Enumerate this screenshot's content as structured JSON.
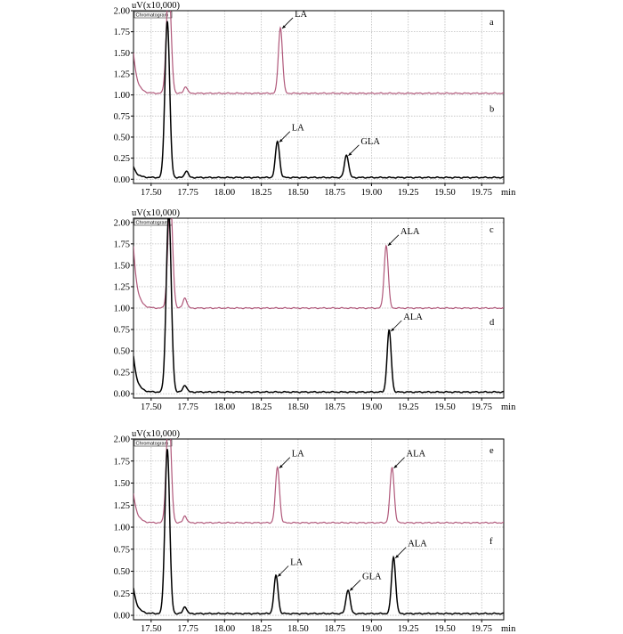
{
  "colors": {
    "upper_trace": "#b0587a",
    "lower_trace": "#000000",
    "grid": "#bdbdbd",
    "axis": "#000000"
  },
  "chart_data": [
    {
      "type": "line",
      "panel": "top",
      "ylabel": "uV(x10,000)",
      "corner_label": "Chromatogram",
      "xunit": "min",
      "xlim": [
        17.38,
        19.9
      ],
      "ylim": [
        -0.05,
        2.0
      ],
      "xticks": [
        "17.50",
        "17.75",
        "18.00",
        "18.25",
        "18.50",
        "18.75",
        "19.00",
        "19.25",
        "19.50",
        "19.75"
      ],
      "xtick_values": [
        17.5,
        17.75,
        18.0,
        18.25,
        18.5,
        18.75,
        19.0,
        19.25,
        19.5,
        19.75
      ],
      "yticks": [
        "0.00",
        "0.25",
        "0.50",
        "0.75",
        "1.00",
        "1.25",
        "1.50",
        "1.75",
        "2.00"
      ],
      "ytick_values": [
        0,
        0.25,
        0.5,
        0.75,
        1.0,
        1.25,
        1.5,
        1.75,
        2.0
      ],
      "series": [
        {
          "tag": "a",
          "style": "upper",
          "baseline": 1.02,
          "start": 1.5,
          "peaks": [
            {
              "t": 17.62,
              "h": 1.3,
              "w": 0.016
            },
            {
              "t": 17.735,
              "h": 0.08,
              "w": 0.012
            },
            {
              "t": 18.38,
              "h": 0.78,
              "w": 0.014
            }
          ],
          "labels": [
            {
              "text": "LA",
              "peak_t": 18.38,
              "peak_y": 1.8
            }
          ]
        },
        {
          "tag": "b",
          "style": "lower",
          "baseline": 0.02,
          "start": 0.15,
          "peaks": [
            {
              "t": 17.61,
              "h": 1.86,
              "w": 0.016
            },
            {
              "t": 17.74,
              "h": 0.08,
              "w": 0.012
            },
            {
              "t": 18.36,
              "h": 0.43,
              "w": 0.014
            },
            {
              "t": 18.83,
              "h": 0.27,
              "w": 0.014
            }
          ],
          "labels": [
            {
              "text": "LA",
              "peak_t": 18.36,
              "peak_y": 0.45
            },
            {
              "text": "GLA",
              "peak_t": 18.83,
              "peak_y": 0.29
            }
          ]
        }
      ]
    },
    {
      "type": "line",
      "panel": "middle",
      "ylabel": "uV(x10,000)",
      "corner_label": "Chromatogram",
      "xunit": "min",
      "xlim": [
        17.38,
        19.9
      ],
      "ylim": [
        -0.05,
        2.05
      ],
      "xticks": [
        "17.50",
        "17.75",
        "18.00",
        "18.25",
        "18.50",
        "18.75",
        "19.00",
        "19.25",
        "19.50",
        "19.75"
      ],
      "xtick_values": [
        17.5,
        17.75,
        18.0,
        18.25,
        18.5,
        18.75,
        19.0,
        19.25,
        19.5,
        19.75
      ],
      "yticks": [
        "0.00",
        "0.25",
        "0.50",
        "0.75",
        "1.00",
        "1.25",
        "1.50",
        "1.75",
        "2.00"
      ],
      "ytick_values": [
        0,
        0.25,
        0.5,
        0.75,
        1.0,
        1.25,
        1.5,
        1.75,
        2.0
      ],
      "series": [
        {
          "tag": "c",
          "style": "upper",
          "baseline": 1.0,
          "start": 1.72,
          "peaks": [
            {
              "t": 17.63,
              "h": 1.3,
              "w": 0.016
            },
            {
              "t": 17.73,
              "h": 0.12,
              "w": 0.013
            },
            {
              "t": 19.1,
              "h": 0.73,
              "w": 0.014
            }
          ],
          "labels": [
            {
              "text": "ALA",
              "peak_t": 19.1,
              "peak_y": 1.74
            }
          ]
        },
        {
          "tag": "d",
          "style": "lower",
          "baseline": 0.02,
          "start": 0.44,
          "peaks": [
            {
              "t": 17.62,
              "h": 2.1,
              "w": 0.017
            },
            {
              "t": 17.73,
              "h": 0.08,
              "w": 0.013
            },
            {
              "t": 19.12,
              "h": 0.72,
              "w": 0.014
            }
          ],
          "labels": [
            {
              "text": "ALA",
              "peak_t": 19.12,
              "peak_y": 0.74
            }
          ]
        }
      ]
    },
    {
      "type": "line",
      "panel": "bottom",
      "ylabel": "uV(x10,000)",
      "corner_label": "Chromatogram",
      "xunit": "min",
      "xlim": [
        17.38,
        19.9
      ],
      "ylim": [
        -0.05,
        2.0
      ],
      "xticks": [
        "17.50",
        "17.75",
        "18.00",
        "18.25",
        "18.50",
        "18.75",
        "19.00",
        "19.25",
        "19.50",
        "19.75"
      ],
      "xtick_values": [
        17.5,
        17.75,
        18.0,
        18.25,
        18.5,
        18.75,
        19.0,
        19.25,
        19.5,
        19.75
      ],
      "yticks": [
        "0.00",
        "0.25",
        "0.50",
        "0.75",
        "1.00",
        "1.25",
        "1.50",
        "1.75",
        "2.00"
      ],
      "ytick_values": [
        0,
        0.25,
        0.5,
        0.75,
        1.0,
        1.25,
        1.5,
        1.75,
        2.0
      ],
      "series": [
        {
          "tag": "e",
          "style": "upper",
          "baseline": 1.05,
          "start": 1.38,
          "peaks": [
            {
              "t": 17.62,
              "h": 1.3,
              "w": 0.016
            },
            {
              "t": 17.73,
              "h": 0.08,
              "w": 0.012
            },
            {
              "t": 18.36,
              "h": 0.63,
              "w": 0.014
            },
            {
              "t": 19.14,
              "h": 0.63,
              "w": 0.014
            }
          ],
          "labels": [
            {
              "text": "LA",
              "peak_t": 18.36,
              "peak_y": 1.68
            },
            {
              "text": "ALA",
              "peak_t": 19.14,
              "peak_y": 1.68
            }
          ]
        },
        {
          "tag": "f",
          "style": "lower",
          "baseline": 0.02,
          "start": 0.31,
          "peaks": [
            {
              "t": 17.61,
              "h": 1.87,
              "w": 0.016
            },
            {
              "t": 17.73,
              "h": 0.08,
              "w": 0.012
            },
            {
              "t": 18.35,
              "h": 0.43,
              "w": 0.014
            },
            {
              "t": 18.84,
              "h": 0.27,
              "w": 0.014
            },
            {
              "t": 19.15,
              "h": 0.64,
              "w": 0.014
            }
          ],
          "labels": [
            {
              "text": "LA",
              "peak_t": 18.35,
              "peak_y": 0.45
            },
            {
              "text": "GLA",
              "peak_t": 18.84,
              "peak_y": 0.29
            },
            {
              "text": "ALA",
              "peak_t": 19.15,
              "peak_y": 0.66
            }
          ]
        }
      ]
    }
  ]
}
